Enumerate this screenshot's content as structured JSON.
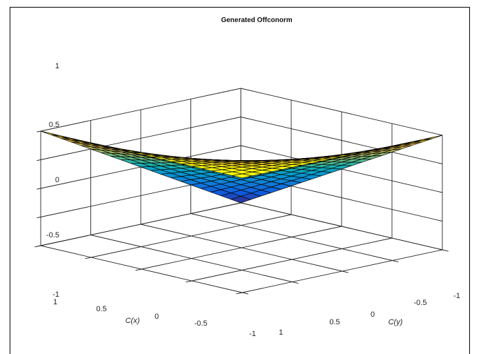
{
  "chart_data": {
    "type": "surface",
    "title": "Generated Offconorm",
    "xlabel": "C(x)",
    "ylabel": "C(y)",
    "zlabel": "",
    "xlim": [
      -1,
      1
    ],
    "ylim": [
      -1,
      1
    ],
    "zlim": [
      -1,
      1
    ],
    "x_ticks": [
      "1",
      "0.5",
      "0",
      "-0.5",
      "-1"
    ],
    "y_ticks": [
      "1",
      "0.5",
      "0",
      "-0.5",
      "-1"
    ],
    "z_ticks": [
      "1",
      "0.5",
      "0",
      "-0.5",
      "-1"
    ],
    "grid": true,
    "colormap": "parula",
    "mesh_resolution": 21,
    "surface_formula": "z = 1 - (1 - x)(1 - y) / 2"
  }
}
